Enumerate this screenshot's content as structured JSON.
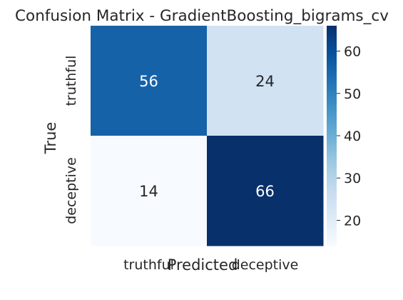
{
  "chart_data": {
    "type": "heatmap",
    "title": "Confusion Matrix - GradientBoosting_bigrams_cv",
    "xlabel": "Predicted",
    "ylabel": "True",
    "x_categories": [
      "truthful",
      "deceptive"
    ],
    "y_categories": [
      "truthful",
      "deceptive"
    ],
    "values": [
      [
        56,
        24
      ],
      [
        14,
        66
      ]
    ],
    "colormap": "Blues",
    "color_range": [
      14,
      66
    ],
    "colorbar_ticks": [
      20,
      30,
      40,
      50,
      60
    ],
    "annotations": true
  }
}
